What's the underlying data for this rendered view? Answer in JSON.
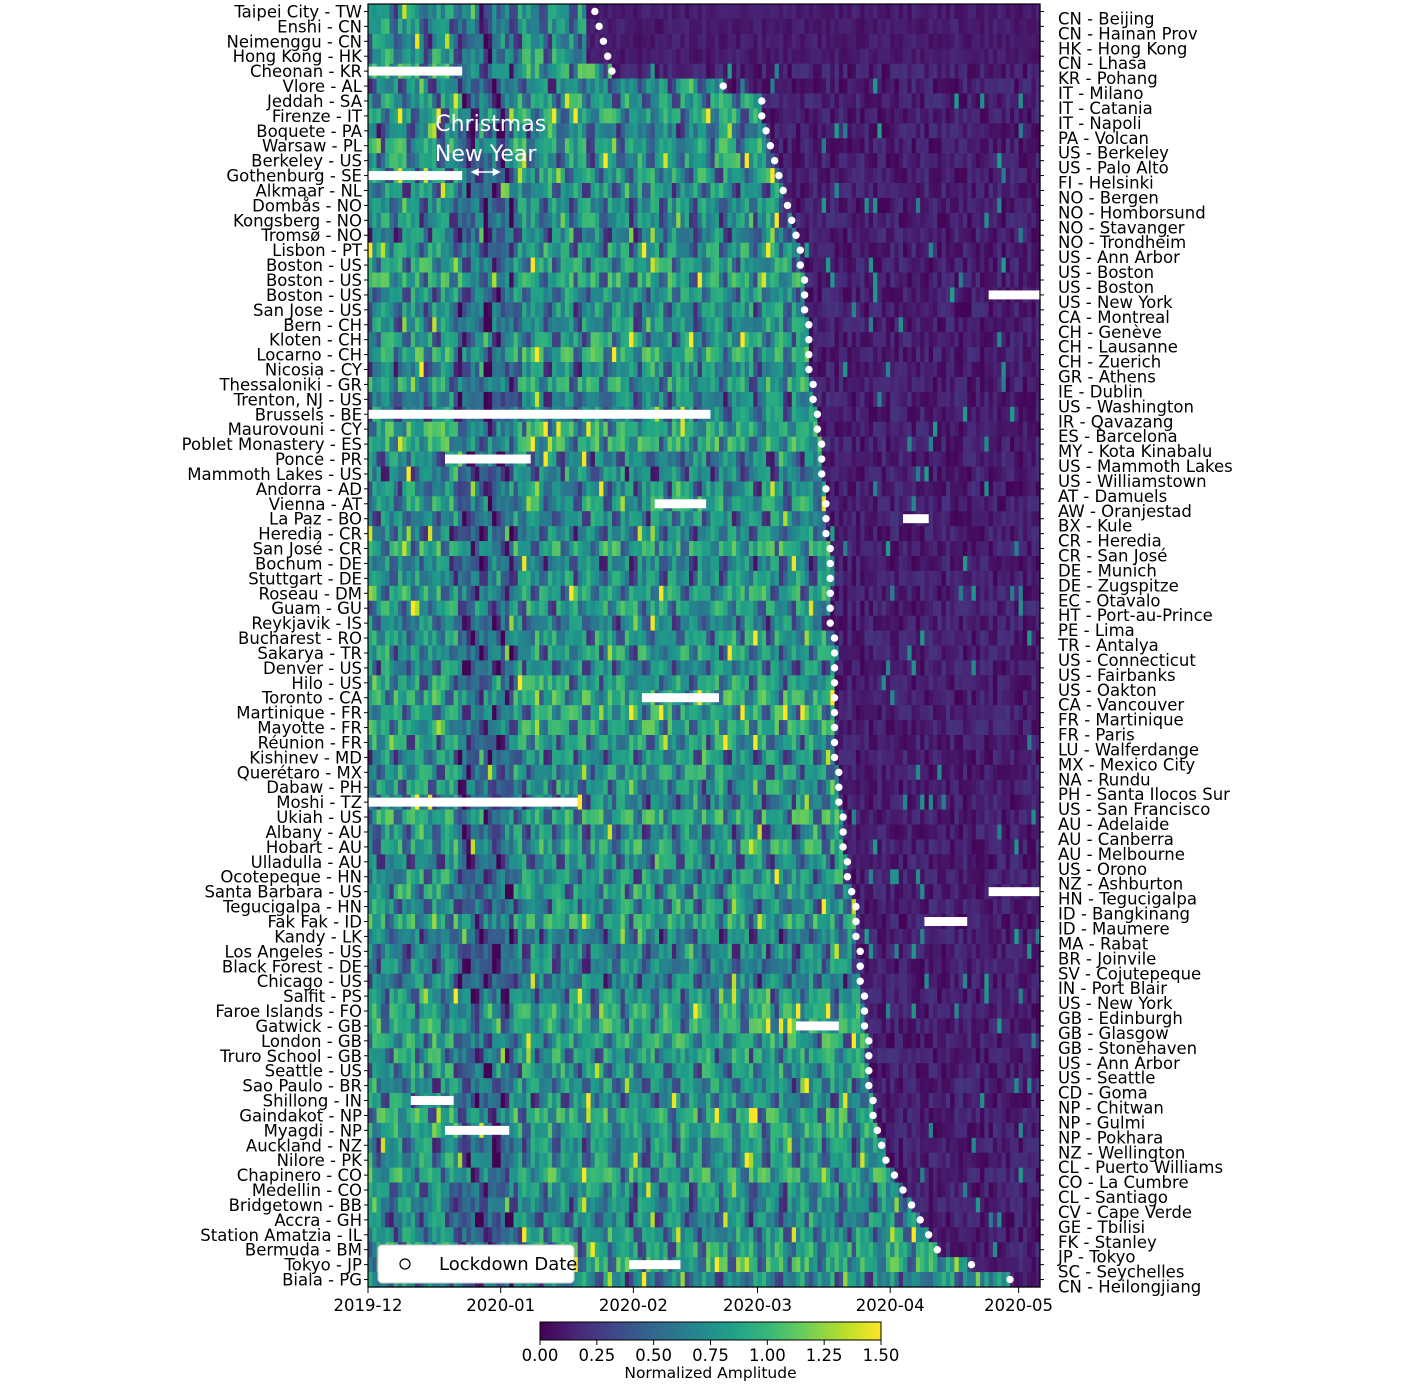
{
  "chart_data": {
    "type": "heatmap",
    "title": "",
    "x_axis": {
      "start": "2019-12-01",
      "end": "2020-05-06",
      "tick_labels": [
        "2019-12",
        "2020-01",
        "2020-02",
        "2020-03",
        "2020-04",
        "2020-05"
      ],
      "tick_dates": [
        "2019-12-01",
        "2020-01-01",
        "2020-02-01",
        "2020-03-01",
        "2020-04-01",
        "2020-05-01"
      ],
      "resolution": "daily"
    },
    "left_labels": [
      "Taipei City - TW",
      "Enshi - CN",
      "Neimenggu - CN",
      "Hong Kong - HK",
      "Cheonan - KR",
      "Vlore - AL",
      "Jeddah - SA",
      "Firenze - IT",
      "Boquete - PA",
      "Warsaw - PL",
      "Berkeley - US",
      "Gothenburg - SE",
      "Alkmaar - NL",
      "Dombås - NO",
      "Kongsberg - NO",
      "Tromsø - NO",
      "Lisbon - PT",
      "Boston - US",
      "Boston - US",
      "Boston - US",
      "San Jose - US",
      "Bern - CH",
      "Kloten - CH",
      "Locarno - CH",
      "Nicosia - CY",
      "Thessaloniki - GR",
      "Trenton, NJ - US",
      "Brussels - BE",
      "Maurovouni - CY",
      "Poblet Monastery - ES",
      "Ponce - PR",
      "Mammoth Lakes - US",
      "Andorra - AD",
      "Vienna - AT",
      "La Paz - BO",
      "Heredia - CR",
      "San José - CR",
      "Bochum - DE",
      "Stuttgart - DE",
      "Roseau - DM",
      "Guam - GU",
      "Reykjavik - IS",
      "Bucharest - RO",
      "Sakarya - TR",
      "Denver - US",
      "Hilo - US",
      "Toronto - CA",
      "Martinique - FR",
      "Mayotte - FR",
      "Réunion - FR",
      "Kishinev - MD",
      "Querétaro - MX",
      "Dabaw - PH",
      "Moshi - TZ",
      "Ukiah - US",
      "Albany - AU",
      "Hobart - AU",
      "Ulladulla - AU",
      "Ocotepeque - HN",
      "Santa Barbara - US",
      "Tegucigalpa - HN",
      "Fak Fak - ID",
      "Kandy - LK",
      "Los Angeles - US",
      "Black Forest - DE",
      "Chicago - US",
      "Salfit - PS",
      "Faroe Islands - FO",
      "Gatwick - GB",
      "London - GB",
      "Truro School - GB",
      "Seattle - US",
      "Sao Paulo - BR",
      "Shillong - IN",
      "Gaindakot - NP",
      "Myagdi - NP",
      "Auckland - NZ",
      "Nilore - PK",
      "Chapinero - CO",
      "Medellin - CO",
      "Bridgetown - BB",
      "Accra - GH",
      "Station Amatzia - IL",
      "Bermuda - BM",
      "Tokyo - JP",
      "Biala - PG"
    ],
    "right_labels": [
      "CN - Beijing",
      "CN - Hainan Prov",
      "HK - Hong Kong",
      "CN - Lhasa",
      "KR - Pohang",
      "IT - Milano",
      "IT - Catania",
      "IT - Napoli",
      "PA - Volcan",
      "US - Berkeley",
      "US - Palo Alto",
      "FI - Helsinki",
      "NO - Bergen",
      "NO - Homborsund",
      "NO - Stavanger",
      "NO - Trondheim",
      "US - Ann Arbor",
      "US - Boston",
      "US - Boston",
      "US - New York",
      "CA - Montreal",
      "CH - Genève",
      "CH - Lausanne",
      "CH - Zuerich",
      "GR - Athens",
      "IE - Dublin",
      "US - Washington",
      "IR - Qavazang",
      "ES - Barcelona",
      "MY - Kota Kinabalu",
      "US - Mammoth Lakes",
      "US - Williamstown",
      "AT - Damuels",
      "AW - Oranjestad",
      "BX - Kule",
      "CR - Heredia",
      "CR - San José",
      "DE - Munich",
      "DE - Zugspitze",
      "EC - Otavalo",
      "HT - Port-au-Prince",
      "PE - Lima",
      "TR - Antalya",
      "US - Connecticut",
      "US - Fairbanks",
      "US - Oakton",
      "CA - Vancouver",
      "FR - Martinique",
      "FR - Paris",
      "LU - Walferdange",
      "MX - Mexico City",
      "NA - Rundu",
      "PH - Santa Ilocos Sur",
      "US - San Francisco",
      "AU - Adelaide",
      "AU - Canberra",
      "AU - Melbourne",
      "US - Orono",
      "NZ - Ashburton",
      "HN - Tegucigalpa",
      "ID - Bangkinang",
      "ID - Maumere",
      "MA - Rabat",
      "BR - Joinvile",
      "SV - Cojutepeque",
      "IN - Port Blair",
      "US - New York",
      "GB - Edinburgh",
      "GB - Glasgow",
      "GB - Stonehaven",
      "US - Ann Arbor",
      "US - Seattle",
      "CD - Goma",
      "NP - Chitwan",
      "NP - Gulmi",
      "NP - Pokhara",
      "NZ - Wellington",
      "CL - Puerto Williams",
      "CO - La Cumbre",
      "CL - Santiago",
      "CV - Cape Verde",
      "GE - Tbilisi",
      "FK - Stanley",
      "JP - Tokyo",
      "SC - Seychelles",
      "CN - Heilongjiang"
    ],
    "rows": 86,
    "lockdown_dates": [
      "2020-01-23",
      "2020-01-24",
      "2020-01-25",
      "2020-01-26",
      "2020-01-27",
      "2020-02-22",
      "2020-03-02",
      "2020-03-02",
      "2020-03-03",
      "2020-03-04",
      "2020-03-05",
      "2020-03-06",
      "2020-03-07",
      "2020-03-08",
      "2020-03-09",
      "2020-03-10",
      "2020-03-11",
      "2020-03-11",
      "2020-03-12",
      "2020-03-12",
      "2020-03-12",
      "2020-03-13",
      "2020-03-13",
      "2020-03-13",
      "2020-03-13",
      "2020-03-14",
      "2020-03-14",
      "2020-03-15",
      "2020-03-15",
      "2020-03-16",
      "2020-03-16",
      "2020-03-16",
      "2020-03-17",
      "2020-03-17",
      "2020-03-17",
      "2020-03-17",
      "2020-03-18",
      "2020-03-18",
      "2020-03-18",
      "2020-03-18",
      "2020-03-18",
      "2020-03-18",
      "2020-03-19",
      "2020-03-19",
      "2020-03-19",
      "2020-03-19",
      "2020-03-19",
      "2020-03-19",
      "2020-03-19",
      "2020-03-19",
      "2020-03-19",
      "2020-03-20",
      "2020-03-20",
      "2020-03-20",
      "2020-03-21",
      "2020-03-21",
      "2020-03-21",
      "2020-03-22",
      "2020-03-22",
      "2020-03-23",
      "2020-03-24",
      "2020-03-24",
      "2020-03-24",
      "2020-03-25",
      "2020-03-25",
      "2020-03-25",
      "2020-03-26",
      "2020-03-26",
      "2020-03-26",
      "2020-03-27",
      "2020-03-27",
      "2020-03-27",
      "2020-03-27",
      "2020-03-28",
      "2020-03-28",
      "2020-03-29",
      "2020-03-30",
      "2020-03-31",
      "2020-04-02",
      "2020-04-04",
      "2020-04-06",
      "2020-04-08",
      "2020-04-10",
      "2020-04-12",
      "2020-04-20",
      "2020-04-29"
    ],
    "annotations": {
      "christmas_label": "Christmas",
      "new_year_label": "New Year",
      "christmas_date": "2019-12-25",
      "new_year_date": "2020-01-01"
    },
    "legend": {
      "marker": "open circle",
      "label": "Lockdown Date",
      "position": "bottom-left"
    },
    "colorbar": {
      "label": "Normalized Amplitude",
      "min": 0.0,
      "max": 1.5,
      "ticks": [
        "0.00",
        "0.25",
        "0.50",
        "0.75",
        "1.00",
        "1.25",
        "1.50"
      ],
      "colormap": "viridis",
      "stops": [
        "#440154",
        "#482878",
        "#3e4989",
        "#31688e",
        "#26828e",
        "#1f9e89",
        "#35b779",
        "#6ece58",
        "#b5de2b",
        "#fde725"
      ]
    },
    "gap_color": "#ffffff"
  }
}
